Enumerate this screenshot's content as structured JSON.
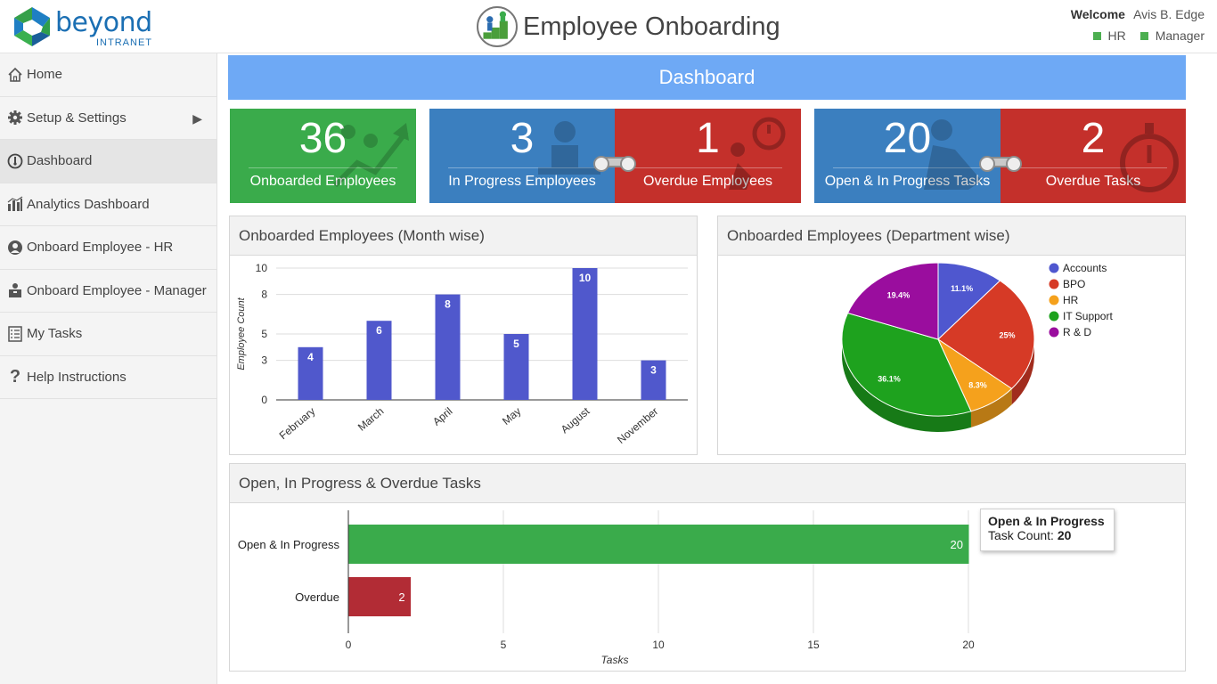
{
  "header": {
    "logo_word": "beyond",
    "logo_sub": "INTRANET",
    "app_title": "Employee Onboarding",
    "welcome_label": "Welcome",
    "user_name": "Avis B. Edge",
    "roles": [
      "HR",
      "Manager"
    ],
    "role_color": "#4caf50"
  },
  "sidebar": {
    "items": [
      {
        "label": "Home",
        "icon": "home-icon"
      },
      {
        "label": "Setup & Settings",
        "icon": "gear-icon"
      },
      {
        "label": "Dashboard",
        "icon": "dashboard-icon"
      },
      {
        "label": "Analytics Dashboard",
        "icon": "bar-chart-icon"
      },
      {
        "label": "Onboard Employee - HR",
        "icon": "user-icon"
      },
      {
        "label": "Onboard Employee - Manager",
        "icon": "briefcase-user-icon"
      },
      {
        "label": "My Tasks",
        "icon": "checklist-icon"
      },
      {
        "label": "Help Instructions",
        "icon": "question-icon"
      }
    ],
    "active": "Dashboard"
  },
  "dashboard": {
    "banner": "Dashboard",
    "banner_color": "#6ea9f5",
    "kpis": [
      {
        "value": "36",
        "label": "Onboarded Employees",
        "color": "#3aab4b"
      },
      {
        "value": "3",
        "label": "In Progress Employees",
        "color": "#3b7fbf"
      },
      {
        "value": "1",
        "label": "Overdue Employees",
        "color": "#c4302b"
      },
      {
        "value": "20",
        "label": "Open & In Progress Tasks",
        "color": "#3b7fbf"
      },
      {
        "value": "2",
        "label": "Overdue Tasks",
        "color": "#c4302b"
      }
    ]
  },
  "panels": {
    "month_title": "Onboarded Employees (Month wise)",
    "dept_title": "Onboarded Employees (Department wise)",
    "tasks_title": "Open, In Progress & Overdue Tasks"
  },
  "tooltip": {
    "title": "Open & In Progress",
    "label": "Task Count:",
    "value": "20"
  },
  "chart_data": [
    {
      "type": "bar",
      "title": "Onboarded Employees (Month wise)",
      "categories": [
        "February",
        "March",
        "April",
        "May",
        "August",
        "November"
      ],
      "values": [
        4,
        6,
        8,
        5,
        10,
        3
      ],
      "ylabel": "Employee Count",
      "yticks": [
        "0",
        "3",
        "5",
        "8",
        "10"
      ],
      "ylim": [
        0,
        10
      ],
      "color": "#5058cc",
      "grid": true
    },
    {
      "type": "pie",
      "title": "Onboarded Employees (Department wise)",
      "labels": [
        "Accounts",
        "BPO",
        "HR",
        "IT Support",
        "R & D"
      ],
      "values": [
        11.1,
        25,
        8.3,
        36.1,
        19.4
      ],
      "value_labels": [
        "11.1%",
        "25%",
        "8.3%",
        "36.1%",
        "19.4%"
      ],
      "colors": [
        "#4f57cf",
        "#d63a26",
        "#f5a11c",
        "#1ea21e",
        "#9a0d9e"
      ],
      "legend": "right",
      "style": "3d"
    },
    {
      "type": "bar",
      "orientation": "horizontal",
      "title": "Open, In Progress & Overdue Tasks",
      "categories": [
        "Open & In Progress",
        "Overdue"
      ],
      "values": [
        20,
        2
      ],
      "colors": [
        "#3aab4b",
        "#b22c35"
      ],
      "xlabel": "Tasks",
      "xticks": [
        "0",
        "5",
        "10",
        "15",
        "20"
      ],
      "xlim": [
        0,
        20
      ],
      "grid": true
    }
  ]
}
